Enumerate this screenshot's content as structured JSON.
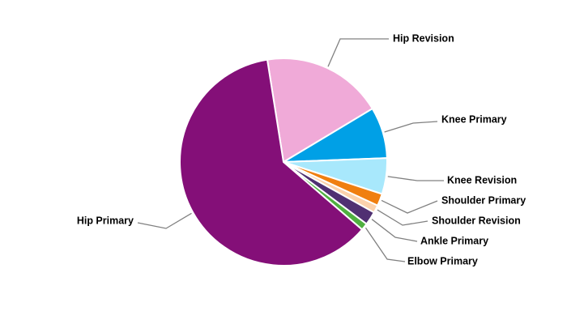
{
  "chart_data": {
    "type": "pie",
    "categories": [
      "Hip Revision",
      "Knee Primary",
      "Knee Revision",
      "Shoulder Primary",
      "Shoulder Revision",
      "Ankle Primary",
      "Elbow Primary",
      "Hip Primary"
    ],
    "values": [
      18.9,
      8.0,
      5.6,
      1.9,
      1.2,
      2.1,
      1.1,
      61.2
    ],
    "colors": [
      "#f0aad8",
      "#00a0e6",
      "#a8e8fc",
      "#f07f10",
      "#fcd2ac",
      "#503072",
      "#50b040",
      "#840f78"
    ]
  }
}
